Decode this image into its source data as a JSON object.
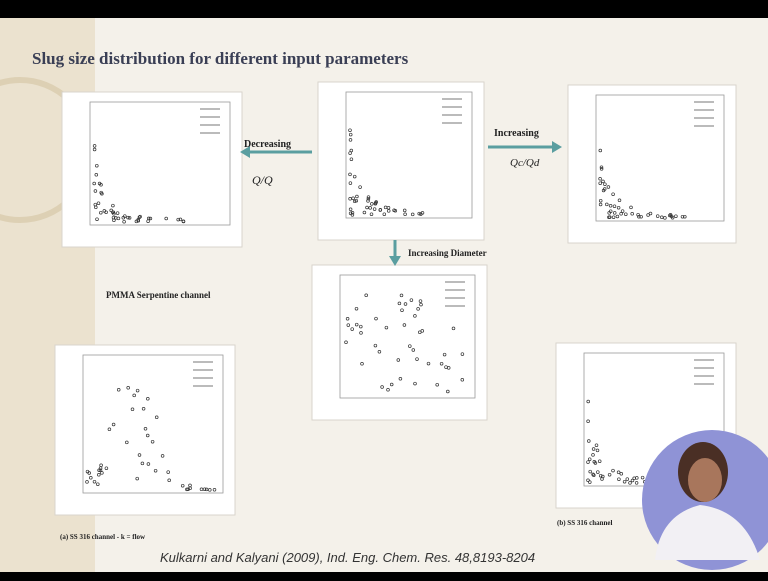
{
  "header": {
    "title": "Slug size distribution for different input parameters"
  },
  "arrows": {
    "left": {
      "label": "Decreasing",
      "sub": "Q/Q"
    },
    "right": {
      "label": "Increasing",
      "sub": "Qc/Qd"
    },
    "down": {
      "label": "Increasing Diameter"
    }
  },
  "captions": {
    "pmma": "PMMA Serpentine channel",
    "a": "(a) SS 316 channel - k = flow",
    "b": "(b) SS 316 channel"
  },
  "citation": "Kulkarni and Kalyani (2009), Ind. Eng. Chem. Res. 48,8193-8204"
}
